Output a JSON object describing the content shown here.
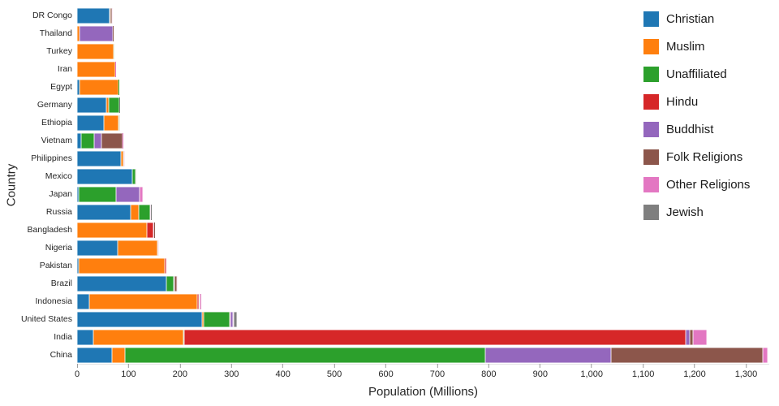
{
  "chart_data": {
    "type": "bar",
    "orientation": "horizontal",
    "stacked": true,
    "title": "",
    "xlabel": "Population (Millions)",
    "ylabel": "Country",
    "xlim": [
      0,
      1345
    ],
    "grid": false,
    "legend_position": "top-right",
    "x_ticks": [
      0,
      100,
      200,
      300,
      400,
      500,
      600,
      700,
      800,
      900,
      1000,
      1100,
      1200,
      1300
    ],
    "x_tick_labels": [
      "0",
      "100",
      "200",
      "300",
      "400",
      "500",
      "600",
      "700",
      "800",
      "900",
      "1,000",
      "1,100",
      "1,200",
      "1,300"
    ],
    "categories": [
      "DR Congo",
      "Thailand",
      "Turkey",
      "Iran",
      "Egypt",
      "Germany",
      "Ethiopia",
      "Vietnam",
      "Philippines",
      "Mexico",
      "Japan",
      "Russia",
      "Bangladesh",
      "Nigeria",
      "Pakistan",
      "Brazil",
      "Indonesia",
      "United States",
      "India",
      "China"
    ],
    "series": [
      {
        "name": "Christian",
        "color": "#1f77b4",
        "values": [
          63.2,
          0.6,
          0.3,
          0.3,
          4.1,
          56.5,
          52.1,
          7.2,
          85.5,
          107.8,
          2.9,
          104.8,
          0.7,
          78.1,
          2.8,
          172.8,
          23.7,
          243.1,
          31.1,
          68.4
        ]
      },
      {
        "name": "Muslim",
        "color": "#ff7f0e",
        "values": [
          1.0,
          3.8,
          71.3,
          73.6,
          76.9,
          4.8,
          28.7,
          0.2,
          4.7,
          0.0,
          0.2,
          14.3,
          134.4,
          77.3,
          167.4,
          0.2,
          209.1,
          2.8,
          176.2,
          24.7
        ]
      },
      {
        "name": "Unaffiliated",
        "color": "#2ca02c",
        "values": [
          1.2,
          0.2,
          0.9,
          0.1,
          0.2,
          20.3,
          0.5,
          26.0,
          0.1,
          5.7,
          72.1,
          23.2,
          0.4,
          0.7,
          0.0,
          15.4,
          0.2,
          50.8,
          0.9,
          700.7
        ]
      },
      {
        "name": "Hindu",
        "color": "#d62728",
        "values": [
          0,
          0.1,
          0,
          0,
          0,
          0.1,
          0,
          0,
          0,
          0,
          0,
          0,
          13.5,
          0,
          3.3,
          0,
          4.0,
          1.8,
          973.8,
          0
        ]
      },
      {
        "name": "Buddhist",
        "color": "#9467bd",
        "values": [
          0,
          64.4,
          0,
          0,
          0,
          0.3,
          0,
          14.4,
          0,
          0,
          45.8,
          0.2,
          0.7,
          0,
          0,
          0.5,
          1.7,
          3.6,
          9.3,
          244.1
        ]
      },
      {
        "name": "Folk Religions",
        "color": "#8c564b",
        "values": [
          1.8,
          0.2,
          0,
          0,
          0,
          0,
          2.3,
          39.8,
          1.4,
          1.8,
          0.4,
          0.2,
          0.6,
          2.2,
          0,
          5.5,
          0.8,
          0.6,
          5.1,
          294.3
        ]
      },
      {
        "name": "Other Religions",
        "color": "#e377c2",
        "values": [
          1.5,
          0,
          0,
          0.7,
          0,
          0.1,
          0,
          0.3,
          0.7,
          0,
          5.9,
          0.2,
          0,
          0.4,
          0,
          0.8,
          0.4,
          1.9,
          27.6,
          9.1
        ]
      },
      {
        "name": "Jewish",
        "color": "#7f7f7f",
        "values": [
          0,
          0,
          0,
          0,
          0,
          0.2,
          0,
          0,
          0,
          0,
          0,
          0.2,
          0,
          0,
          0,
          0.1,
          0,
          5.7,
          0,
          0
        ]
      }
    ]
  }
}
